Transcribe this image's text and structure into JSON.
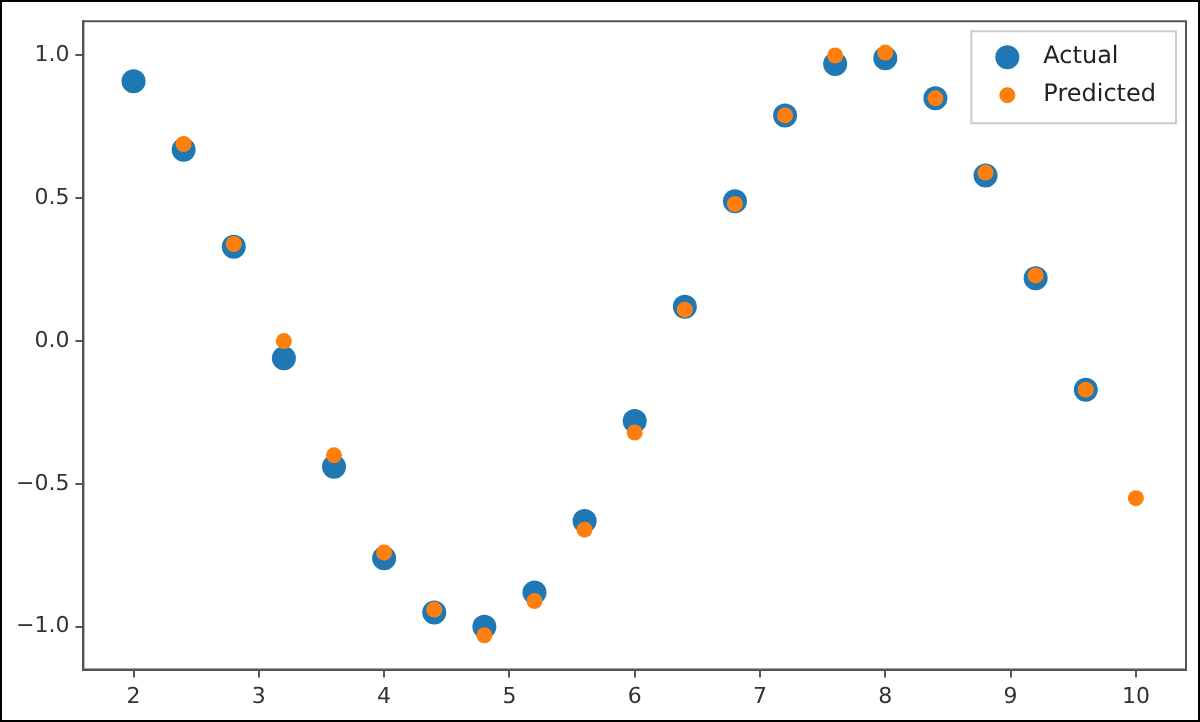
{
  "chart_data": {
    "type": "scatter",
    "xlim": [
      1.6,
      10.4
    ],
    "ylim": [
      -1.15,
      1.12
    ],
    "xticks": [
      2,
      3,
      4,
      5,
      6,
      7,
      8,
      9,
      10
    ],
    "yticks": [
      {
        "value": -1,
        "label": "−1.0"
      },
      {
        "value": -0.5,
        "label": "−0.5"
      },
      {
        "value": 0,
        "label": "0.0"
      },
      {
        "value": 0.5,
        "label": "0.5"
      },
      {
        "value": 1,
        "label": "1.0"
      }
    ],
    "grid": false,
    "legend": "top right",
    "marker": "circle",
    "series": [
      {
        "name": "Actual",
        "color": "#1f77b4",
        "x": [
          2,
          2.4,
          2.8,
          3.2,
          3.6,
          4,
          4.4,
          4.8,
          5.2,
          5.6,
          6,
          6.4,
          6.8,
          7.2,
          7.6,
          8,
          8.4,
          8.8,
          9.2,
          9.6
        ],
        "values": [
          0.91,
          0.67,
          0.33,
          -0.06,
          -0.44,
          -0.76,
          -0.95,
          -1.0,
          -0.88,
          -0.63,
          -0.28,
          0.12,
          0.49,
          0.79,
          0.97,
          0.99,
          0.85,
          0.58,
          0.22,
          -0.17
        ]
      },
      {
        "name": "Predicted",
        "color": "#ff7f0e",
        "x": [
          2.4,
          2.8,
          3.2,
          3.6,
          4,
          4.4,
          4.8,
          5.2,
          5.6,
          6,
          6.4,
          6.8,
          7.2,
          7.6,
          8,
          8.4,
          8.8,
          9.2,
          9.6,
          10
        ],
        "values": [
          0.69,
          0.34,
          0.0,
          -0.4,
          -0.74,
          -0.94,
          -1.03,
          -0.91,
          -0.66,
          -0.32,
          0.11,
          0.48,
          0.79,
          1.0,
          1.01,
          0.85,
          0.59,
          0.23,
          -0.17,
          -0.55
        ]
      }
    ]
  }
}
